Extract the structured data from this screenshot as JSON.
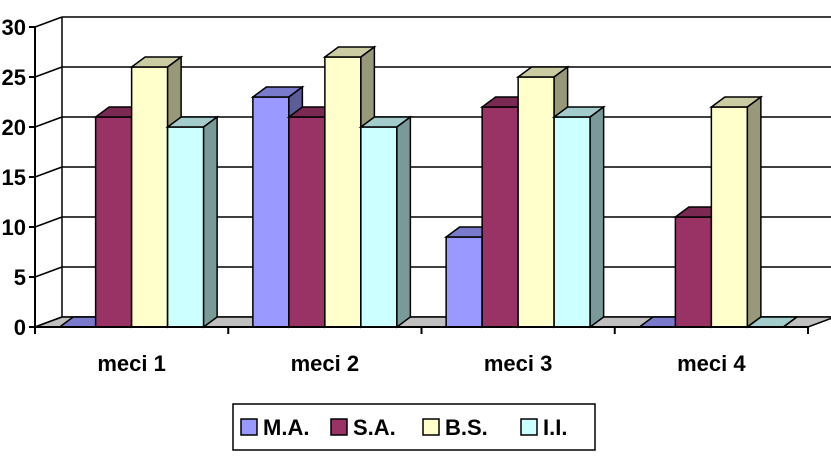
{
  "chart_data": {
    "type": "bar",
    "style": "3d-clustered-column",
    "categories": [
      "meci 1",
      "meci 2",
      "meci 3",
      "meci 4"
    ],
    "series": [
      {
        "name": "M.A.",
        "values": [
          0,
          23,
          9,
          0
        ],
        "color": "#9999ff",
        "side_color": "#5c5c99",
        "top_color": "#7a7acc"
      },
      {
        "name": "S.A.",
        "values": [
          21,
          21,
          22,
          11
        ],
        "color": "#993366",
        "side_color": "#5c1f3d",
        "top_color": "#7a2952"
      },
      {
        "name": "B.S.",
        "values": [
          26,
          27,
          25,
          22
        ],
        "color": "#ffffcc",
        "side_color": "#99997a",
        "top_color": "#cccca3"
      },
      {
        "name": "I.I.",
        "values": [
          20,
          20,
          21,
          0
        ],
        "color": "#ccffff",
        "side_color": "#7a9999",
        "top_color": "#a3cccc"
      }
    ],
    "y_ticks": [
      "0",
      "5",
      "10",
      "15",
      "20",
      "25",
      "30"
    ],
    "ylim": [
      0,
      30
    ],
    "grid": true,
    "legend_position": "bottom",
    "title": "",
    "xlabel": "",
    "ylabel": ""
  }
}
